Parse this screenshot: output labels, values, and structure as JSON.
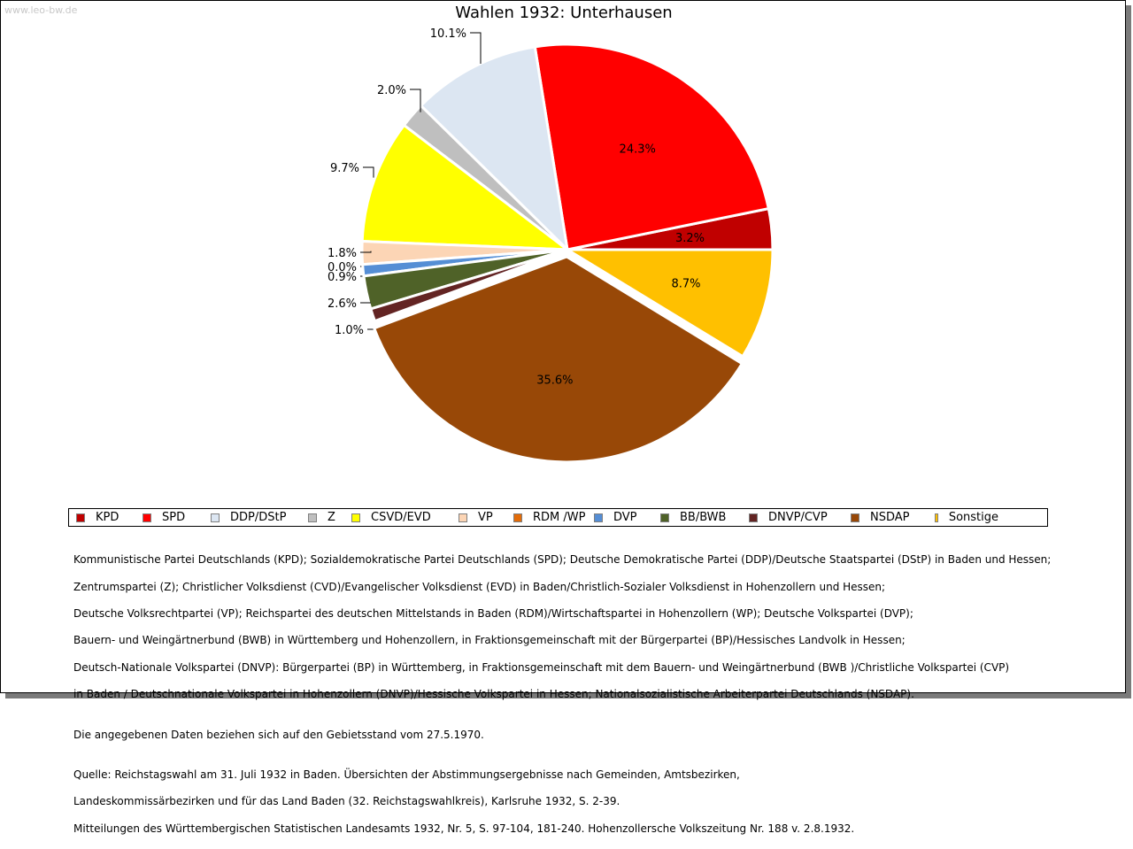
{
  "watermark": "www.leo-bw.de",
  "chart_data": {
    "type": "pie",
    "title": "Wahlen 1932: Unterhausen",
    "slices": [
      {
        "label": "KPD",
        "value": 3.2,
        "display": "3.2%",
        "color": "#c00000"
      },
      {
        "label": "SPD",
        "value": 24.3,
        "display": "24.3%",
        "color": "#ff0000"
      },
      {
        "label": "DDP/DStP",
        "value": 10.1,
        "display": "10.1%",
        "color": "#dce6f2"
      },
      {
        "label": "Z",
        "value": 2.0,
        "display": "2.0%",
        "color": "#bfbfbf"
      },
      {
        "label": "CSVD/EVD",
        "value": 9.7,
        "display": "9.7%",
        "color": "#ffff00"
      },
      {
        "label": "VP",
        "value": 1.8,
        "display": "1.8%",
        "color": "#fcd5b5"
      },
      {
        "label": "RDM /WP",
        "value": 0.0,
        "display": "0.0%",
        "color": "#e36c09"
      },
      {
        "label": "DVP",
        "value": 0.9,
        "display": "0.9%",
        "color": "#558ed5"
      },
      {
        "label": "BB/BWB",
        "value": 2.6,
        "display": "2.6%",
        "color": "#4f6228"
      },
      {
        "label": "DNVP/CVP",
        "value": 1.0,
        "display": "1.0%",
        "color": "#632423"
      },
      {
        "label": "NSDAP",
        "value": 35.6,
        "display": "35.6%",
        "color": "#984807"
      },
      {
        "label": "Sonstige",
        "value": 8.7,
        "display": "8.7%",
        "color": "#ffc000"
      }
    ],
    "legend_position": "bottom"
  },
  "notes": {
    "parties": [
      "Kommunistische Partei Deutschlands (KPD); Sozialdemokratische Partei Deutschlands (SPD); Deutsche Demokratische Partei (DDP)/Deutsche Staatspartei (DStP) in Baden und Hessen;",
      "Zentrumspartei (Z); Christlicher Volksdienst (CVD)/Evangelischer Volksdienst (EVD) in Baden/Christlich-Sozialer Volksdienst in Hohenzollern und Hessen;",
      "Deutsche Volksrechtpartei (VP); Reichspartei des deutschen Mittelstands in Baden (RDM)/Wirtschaftspartei in Hohenzollern (WP); Deutsche Volkspartei (DVP);",
      "Bauern- und Weingärtnerbund (BWB) in Württemberg und Hohenzollern, in Fraktionsgemeinschaft mit der Bürgerpartei (BP)/Hessisches Landvolk in Hessen;",
      "Deutsch-Nationale Volkspartei (DNVP): Bürgerpartei (BP) in Württemberg, in Fraktionsgemeinschaft mit dem Bauern- und Weingärtnerbund (BWB )/Christliche Volkspartei (CVP)",
      "in Baden / Deutschnationale Volkspartei in Hohenzollern (DNVP)/Hessische Volkspartei in Hessen; Nationalsozialistische Arbeiterpartei Deutschlands (NSDAP)."
    ],
    "territory": "Die angegebenen Daten beziehen sich auf den Gebietsstand vom 27.5.1970.",
    "source": [
      "Quelle: Reichstagswahl am 31. Juli 1932 in Baden. Übersichten der Abstimmungsergebnisse nach Gemeinden, Amtsbezirken,",
      "Landeskommissärbezirken und für das Land Baden (32. Reichstagswahlkreis), Karlsruhe 1932, S. 2-39.",
      "Mitteilungen des Württembergischen Statistischen Landesamts 1932, Nr. 5, S. 97-104, 181-240. Hohenzollersche Volkszeitung Nr. 188 v. 2.8.1932."
    ]
  }
}
